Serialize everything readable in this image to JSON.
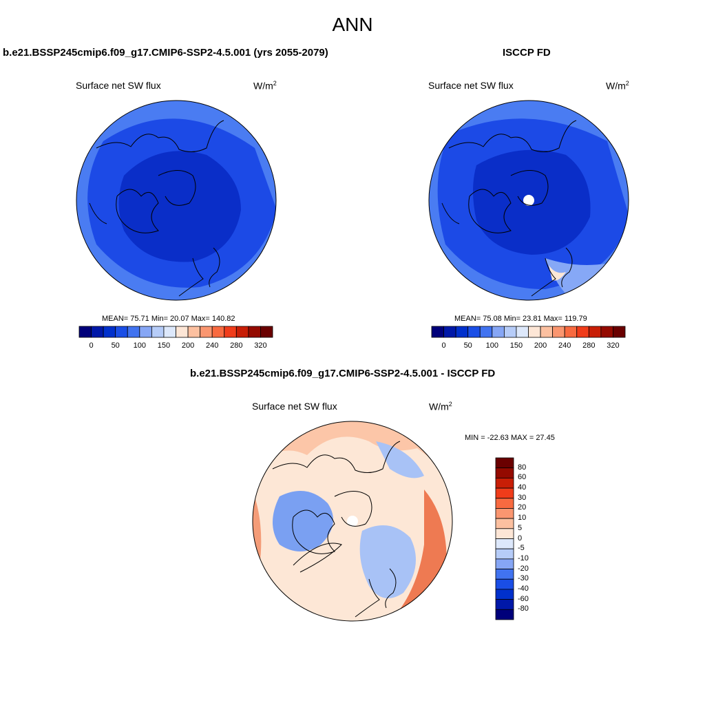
{
  "figure": {
    "title": "ANN"
  },
  "panels": [
    {
      "title": "b.e21.BSSP245cmip6.f09_g17.CMIP6-SSP2-4.5.001 (yrs 2055-2079)",
      "variable": "Surface net SW flux",
      "units": "W/m",
      "units_sup": "2",
      "stats": "MEAN=  75.71  Min=  20.07  Max= 140.82"
    },
    {
      "title": "ISCCP FD",
      "variable": "Surface net SW flux",
      "units": "W/m",
      "units_sup": "2",
      "stats": "MEAN=  75.08  Min=  23.81  Max= 119.79"
    },
    {
      "title": "b.e21.BSSP245cmip6.f09_g17.CMIP6-SSP2-4.5.001 - ISCCP FD",
      "variable": "Surface net SW flux",
      "units": "W/m",
      "units_sup": "2",
      "stats": "MIN = -22.63 MAX =  27.45"
    }
  ],
  "colorbar_top": {
    "colors": [
      "#00007a",
      "#0018a8",
      "#0030cc",
      "#1a4ee6",
      "#4173f0",
      "#86a6f5",
      "#b6ccf8",
      "#dde8fb",
      "#fde6d6",
      "#fcc0a0",
      "#fa9670",
      "#f86a40",
      "#f03c1a",
      "#c81e06",
      "#940a00",
      "#6a0000"
    ],
    "labels": [
      "0",
      "50",
      "100",
      "150",
      "200",
      "240",
      "280",
      "320"
    ]
  },
  "colorbar_diff": {
    "colors": [
      "#00007a",
      "#0018a8",
      "#0030cc",
      "#1a4ee6",
      "#4173f0",
      "#86a6f5",
      "#b6ccf8",
      "#dde8fb",
      "#fde6d6",
      "#fcc0a0",
      "#fa9670",
      "#f86a40",
      "#f03c1a",
      "#c81e06",
      "#940a00",
      "#6a0000"
    ],
    "labels": [
      "80",
      "60",
      "40",
      "30",
      "20",
      "10",
      "5",
      "0",
      "-5",
      "-10",
      "-20",
      "-30",
      "-40",
      "-60",
      "-80"
    ]
  },
  "map_colors": {
    "deep": "#0a2ec8",
    "mid": "#1c4ae6",
    "light": "#4a7cf2",
    "pale": "#86a8f6",
    "pink": "#fcc6a8",
    "orange": "#f49c78",
    "red": "#ee7a52",
    "cream": "#fde7d6",
    "lightblue": "#a8c2f6",
    "blue": "#7aa0f2"
  }
}
